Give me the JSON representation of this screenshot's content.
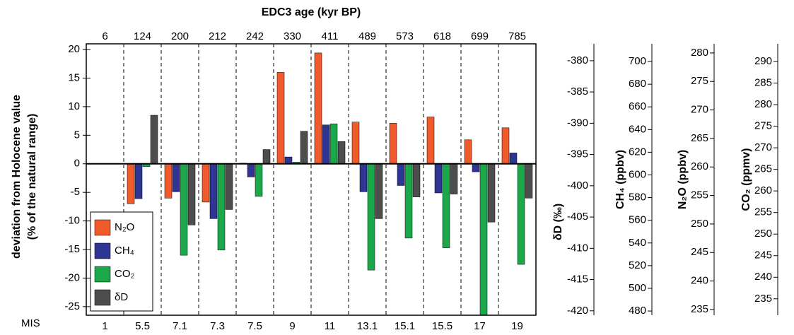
{
  "chart_data": {
    "type": "bar",
    "title": "EDC3 age (kyr BP)",
    "ages": [
      6,
      124,
      200,
      212,
      242,
      330,
      411,
      489,
      573,
      618,
      699,
      785
    ],
    "categories_label": "MIS",
    "categories": [
      "1",
      "5.5",
      "7.1",
      "7.3",
      "7.5",
      "9",
      "11",
      "13.1",
      "15.1",
      "15.5",
      "17",
      "19"
    ],
    "y_label": [
      "deviation from Holocene value",
      "(% of the natural range)"
    ],
    "ylim": [
      -26.5,
      21
    ],
    "yticks": [
      20,
      15,
      10,
      5,
      0,
      -5,
      -10,
      -15,
      -20,
      -25
    ],
    "legend": "lower left",
    "series": [
      {
        "name": "N₂O",
        "color": "#f15a2b",
        "values": [
          0,
          -7,
          -6,
          -6.7,
          0.1,
          16,
          19.4,
          7.3,
          7.1,
          8.2,
          4.2,
          6.3
        ]
      },
      {
        "name": "CH₄",
        "color": "#2e3592",
        "values": [
          0,
          -6.1,
          -4.9,
          -9.6,
          -2.3,
          1.2,
          6.8,
          -4.9,
          -3.8,
          -5.1,
          -1.4,
          1.9
        ]
      },
      {
        "name": "CO₂",
        "color": "#1ba84a",
        "values": [
          0,
          -0.5,
          -16,
          -15.1,
          -5.7,
          0.3,
          7,
          -18.6,
          -13,
          -14.7,
          -26.5,
          -17.6
        ]
      },
      {
        "name": "δD",
        "color": "#4d4d4d",
        "values": [
          0,
          8.5,
          -10.7,
          -8,
          2.5,
          5.7,
          3.9,
          -9.6,
          -5.8,
          -5.3,
          -10.2,
          -6
        ]
      }
    ],
    "right_axes": [
      {
        "label": "δD (‰)",
        "lim": [
          -420.7,
          -377.3
        ],
        "ticks": [
          -380,
          -385,
          -390,
          -395,
          -400,
          -405,
          -410,
          -415,
          -420
        ]
      },
      {
        "label": "CH₄ (ppbv)",
        "lim": [
          476.3,
          715.6
        ],
        "ticks": [
          700,
          680,
          660,
          640,
          620,
          600,
          580,
          560,
          540,
          520,
          500,
          480
        ]
      },
      {
        "label": "N₂O (ppbv)",
        "lim": [
          234,
          281.6
        ],
        "ticks": [
          280,
          275,
          270,
          265,
          260,
          255,
          250,
          245,
          240,
          235
        ]
      },
      {
        "label": "CO₂ (ppmv)",
        "lim": [
          231.2,
          294.1
        ],
        "ticks": [
          290,
          285,
          280,
          275,
          270,
          265,
          260,
          255,
          250,
          245,
          240,
          235
        ]
      }
    ]
  }
}
